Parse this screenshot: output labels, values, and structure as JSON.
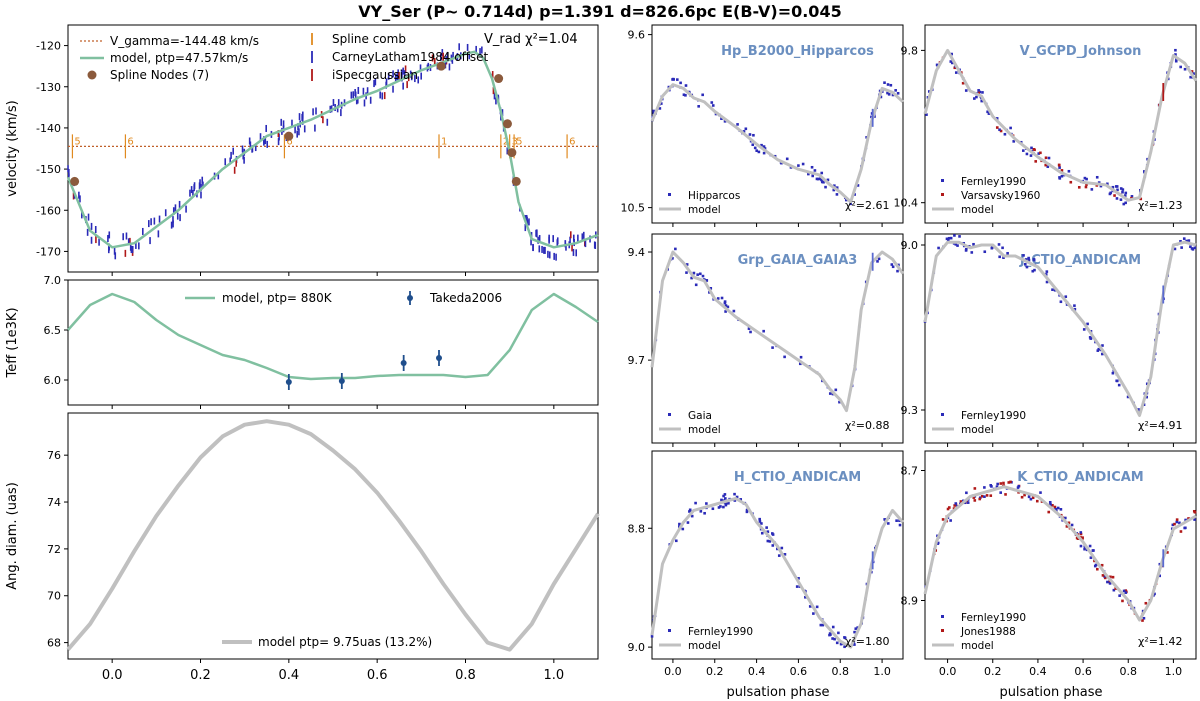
{
  "figure": {
    "title": "VY_Ser (P~ 0.714d) p=1.391 d=826.6pc E(B-V)=0.045"
  },
  "colors": {
    "model_green": "#80c0a0",
    "model_grey": "#c0c0c0",
    "data_blue": "#2a2ab8",
    "data_red": "#b01818",
    "node_brown": "#8b5a3c",
    "comb_orange": "#e08a20",
    "gamma_line": "#c0602a",
    "band_title": "#6b8fc0",
    "teff_point": "#1f4e8c"
  },
  "chart_data": [
    {
      "id": "vrad",
      "type": "line",
      "ylabel": "velocity (km/s)",
      "xlim": [
        -0.1,
        1.1
      ],
      "ylim": [
        -175,
        -115
      ],
      "y_inverted": true,
      "yticks": [
        -120,
        -130,
        -140,
        -150,
        -160,
        -170
      ],
      "corner_label": "V_rad χ²=1.04",
      "legend": [
        "V_gamma=-144.48 km/s",
        "model, ptp=47.57km/s",
        "Spline Nodes (7)",
        "Spline comb",
        "CarneyLatham1984 offset",
        "iSpecgaussian"
      ],
      "gamma": -144.48,
      "model": {
        "x": [
          -0.1,
          -0.05,
          0.0,
          0.05,
          0.1,
          0.15,
          0.2,
          0.25,
          0.3,
          0.35,
          0.4,
          0.45,
          0.5,
          0.55,
          0.6,
          0.65,
          0.7,
          0.75,
          0.8,
          0.82,
          0.84,
          0.86,
          0.88,
          0.9,
          0.92,
          0.95,
          1.0,
          1.05,
          1.1
        ],
        "y": [
          -152,
          -165,
          -169,
          -168,
          -164,
          -160,
          -155,
          -150,
          -146,
          -142,
          -140,
          -138,
          -135.5,
          -133,
          -131,
          -128.5,
          -126,
          -124,
          -122,
          -121.5,
          -123,
          -128,
          -136,
          -146,
          -158,
          -167,
          -169,
          -168,
          -166
        ]
      },
      "nodes": {
        "x": [
          -0.085,
          0.4,
          0.745,
          0.875,
          0.895,
          0.905,
          0.915
        ],
        "y": [
          -153,
          -142,
          -125,
          -128,
          -139,
          -146,
          -153
        ]
      },
      "comb": {
        "x": [
          -0.09,
          0.03,
          0.39,
          0.74,
          0.88,
          0.9,
          0.91,
          1.03
        ],
        "labels": [
          "5",
          "6",
          "6",
          "1",
          "2",
          "3",
          "5",
          "6"
        ]
      }
    },
    {
      "id": "teff",
      "type": "line",
      "ylabel": "Teff (1e3K)",
      "xlim": [
        -0.1,
        1.1
      ],
      "ylim": [
        5.75,
        7.0
      ],
      "yticks": [
        6.0,
        6.5,
        7.0
      ],
      "legend": [
        "model, ptp= 880K",
        "Takeda2006"
      ],
      "model": {
        "x": [
          -0.1,
          -0.05,
          0.0,
          0.05,
          0.1,
          0.15,
          0.2,
          0.25,
          0.3,
          0.35,
          0.4,
          0.45,
          0.5,
          0.55,
          0.6,
          0.65,
          0.7,
          0.75,
          0.8,
          0.85,
          0.9,
          0.95,
          1.0,
          1.05,
          1.1
        ],
        "y": [
          6.5,
          6.75,
          6.86,
          6.78,
          6.6,
          6.45,
          6.35,
          6.25,
          6.2,
          6.12,
          6.03,
          6.01,
          6.02,
          6.02,
          6.04,
          6.05,
          6.05,
          6.05,
          6.03,
          6.05,
          6.3,
          6.7,
          6.86,
          6.73,
          6.58
        ]
      },
      "points": [
        {
          "x": 0.4,
          "y": 5.98,
          "err": 0.08
        },
        {
          "x": 0.52,
          "y": 5.99,
          "err": 0.08
        },
        {
          "x": 0.66,
          "y": 6.17,
          "err": 0.08
        },
        {
          "x": 0.74,
          "y": 6.22,
          "err": 0.08
        }
      ]
    },
    {
      "id": "diam",
      "type": "line",
      "ylabel": "Ang. diam. (uas)",
      "xlim": [
        -0.1,
        1.1
      ],
      "ylim": [
        67.3,
        77.8
      ],
      "yticks": [
        68,
        70,
        72,
        74,
        76
      ],
      "xticks": [
        0.0,
        0.2,
        0.4,
        0.6,
        0.8,
        1.0
      ],
      "legend": [
        "model ptp= 9.75uas (13.2%)"
      ],
      "model": {
        "x": [
          -0.1,
          -0.05,
          0.0,
          0.05,
          0.1,
          0.15,
          0.2,
          0.25,
          0.3,
          0.35,
          0.4,
          0.45,
          0.5,
          0.55,
          0.6,
          0.65,
          0.7,
          0.75,
          0.8,
          0.85,
          0.9,
          0.95,
          1.0,
          1.05,
          1.1
        ],
        "y": [
          67.7,
          68.8,
          70.3,
          71.9,
          73.4,
          74.7,
          75.9,
          76.8,
          77.3,
          77.45,
          77.3,
          76.9,
          76.2,
          75.4,
          74.4,
          73.2,
          71.9,
          70.5,
          69.2,
          68.0,
          67.7,
          68.8,
          70.5,
          72.0,
          73.5
        ]
      }
    },
    {
      "id": "hp",
      "type": "scatter",
      "band": "Hp_B2000_Hipparcos",
      "xlim": [
        -0.1,
        1.1
      ],
      "ylim": [
        10.58,
        9.55
      ],
      "yticks": [
        9.6,
        10.5
      ],
      "chi2": "χ²=2.61",
      "legend": [
        "Hipparcos",
        "model"
      ],
      "model": {
        "x": [
          -0.1,
          -0.05,
          0.0,
          0.05,
          0.1,
          0.15,
          0.2,
          0.3,
          0.4,
          0.5,
          0.6,
          0.7,
          0.75,
          0.8,
          0.85,
          0.9,
          0.95,
          1.0,
          1.05,
          1.1
        ],
        "y": [
          10.05,
          9.92,
          9.86,
          9.88,
          9.93,
          9.95,
          10.0,
          10.08,
          10.17,
          10.25,
          10.3,
          10.33,
          10.38,
          10.42,
          10.47,
          10.3,
          10.05,
          9.88,
          9.9,
          9.95
        ]
      }
    },
    {
      "id": "v",
      "type": "scatter",
      "band": "V_GCPD_Johnson",
      "xlim": [
        -0.1,
        1.1
      ],
      "ylim": [
        10.48,
        9.7
      ],
      "yticks": [
        9.8,
        10.4
      ],
      "chi2": "χ²=1.23",
      "legend": [
        "Fernley1990",
        "Varsavsky1960",
        "model"
      ],
      "model": {
        "x": [
          -0.1,
          -0.05,
          0.0,
          0.05,
          0.1,
          0.15,
          0.2,
          0.3,
          0.4,
          0.5,
          0.6,
          0.7,
          0.75,
          0.8,
          0.85,
          0.9,
          0.95,
          1.0,
          1.05,
          1.1
        ],
        "y": [
          10.05,
          9.88,
          9.8,
          9.88,
          9.96,
          9.98,
          10.06,
          10.15,
          10.22,
          10.28,
          10.32,
          10.33,
          10.36,
          10.39,
          10.38,
          10.2,
          9.98,
          9.82,
          9.85,
          9.92
        ]
      }
    },
    {
      "id": "grp",
      "type": "scatter",
      "band": "Grp_GAIA_GAIA3",
      "xlim": [
        -0.1,
        1.1
      ],
      "ylim": [
        9.93,
        9.35
      ],
      "yticks": [
        9.4,
        9.7
      ],
      "chi2": "χ²=0.88",
      "legend": [
        "Gaia",
        "model"
      ],
      "model": {
        "x": [
          -0.1,
          -0.05,
          0.0,
          0.05,
          0.1,
          0.15,
          0.2,
          0.3,
          0.4,
          0.5,
          0.6,
          0.7,
          0.75,
          0.8,
          0.83,
          0.87,
          0.9,
          0.95,
          1.0,
          1.05,
          1.1
        ],
        "y": [
          9.72,
          9.48,
          9.4,
          9.43,
          9.47,
          9.48,
          9.53,
          9.58,
          9.62,
          9.66,
          9.7,
          9.74,
          9.78,
          9.81,
          9.84,
          9.72,
          9.56,
          9.43,
          9.4,
          9.42,
          9.46
        ]
      }
    },
    {
      "id": "j",
      "type": "scatter",
      "band": "J_CTIO_ANDICAM",
      "xlim": [
        -0.1,
        1.1
      ],
      "ylim": [
        9.36,
        8.98
      ],
      "yticks": [
        9.0,
        9.3
      ],
      "chi2": "χ²=4.91",
      "legend": [
        "Fernley1990",
        "model"
      ],
      "model": {
        "x": [
          -0.1,
          -0.05,
          0.0,
          0.05,
          0.1,
          0.15,
          0.2,
          0.25,
          0.3,
          0.35,
          0.4,
          0.5,
          0.6,
          0.7,
          0.8,
          0.85,
          0.9,
          0.95,
          1.0,
          1.05,
          1.1
        ],
        "y": [
          9.14,
          9.02,
          8.995,
          8.995,
          9.005,
          9.0,
          9.0,
          9.02,
          9.02,
          9.03,
          9.04,
          9.09,
          9.14,
          9.2,
          9.27,
          9.31,
          9.24,
          9.1,
          9.0,
          8.995,
          9.0
        ]
      }
    },
    {
      "id": "h",
      "type": "scatter",
      "band": "H_CTIO_ANDICAM",
      "xlim": [
        -0.1,
        1.1
      ],
      "ylim": [
        9.02,
        8.67
      ],
      "yticks": [
        8.8,
        9.0
      ],
      "chi2": "χ²=1.80",
      "legend": [
        "Fernley1990",
        "model"
      ],
      "model": {
        "x": [
          -0.1,
          -0.05,
          0.0,
          0.05,
          0.1,
          0.15,
          0.2,
          0.25,
          0.3,
          0.35,
          0.4,
          0.5,
          0.6,
          0.7,
          0.8,
          0.85,
          0.9,
          0.95,
          1.0,
          1.05,
          1.1
        ],
        "y": [
          8.98,
          8.86,
          8.82,
          8.79,
          8.77,
          8.765,
          8.76,
          8.755,
          8.75,
          8.76,
          8.79,
          8.83,
          8.89,
          8.95,
          8.99,
          9.0,
          8.96,
          8.86,
          8.8,
          8.77,
          8.79
        ]
      }
    },
    {
      "id": "k",
      "type": "scatter",
      "band": "K_CTIO_ANDICAM",
      "xlim": [
        -0.1,
        1.1
      ],
      "ylim": [
        8.99,
        8.67
      ],
      "yticks": [
        8.7,
        8.9
      ],
      "chi2": "χ²=1.42",
      "legend": [
        "Fernley1990",
        "Jones1988",
        "model"
      ],
      "model": {
        "x": [
          -0.1,
          -0.05,
          0.0,
          0.05,
          0.1,
          0.15,
          0.2,
          0.25,
          0.3,
          0.35,
          0.4,
          0.5,
          0.6,
          0.7,
          0.8,
          0.85,
          0.9,
          0.95,
          1.0,
          1.05,
          1.1
        ],
        "y": [
          8.89,
          8.81,
          8.77,
          8.755,
          8.74,
          8.735,
          8.73,
          8.725,
          8.73,
          8.735,
          8.74,
          8.77,
          8.81,
          8.86,
          8.9,
          8.93,
          8.9,
          8.84,
          8.79,
          8.78,
          8.77
        ]
      }
    }
  ],
  "panel_xlabel": "pulsation phase",
  "small_xticks": [
    0.0,
    0.2,
    0.4,
    0.6,
    0.8,
    1.0
  ]
}
